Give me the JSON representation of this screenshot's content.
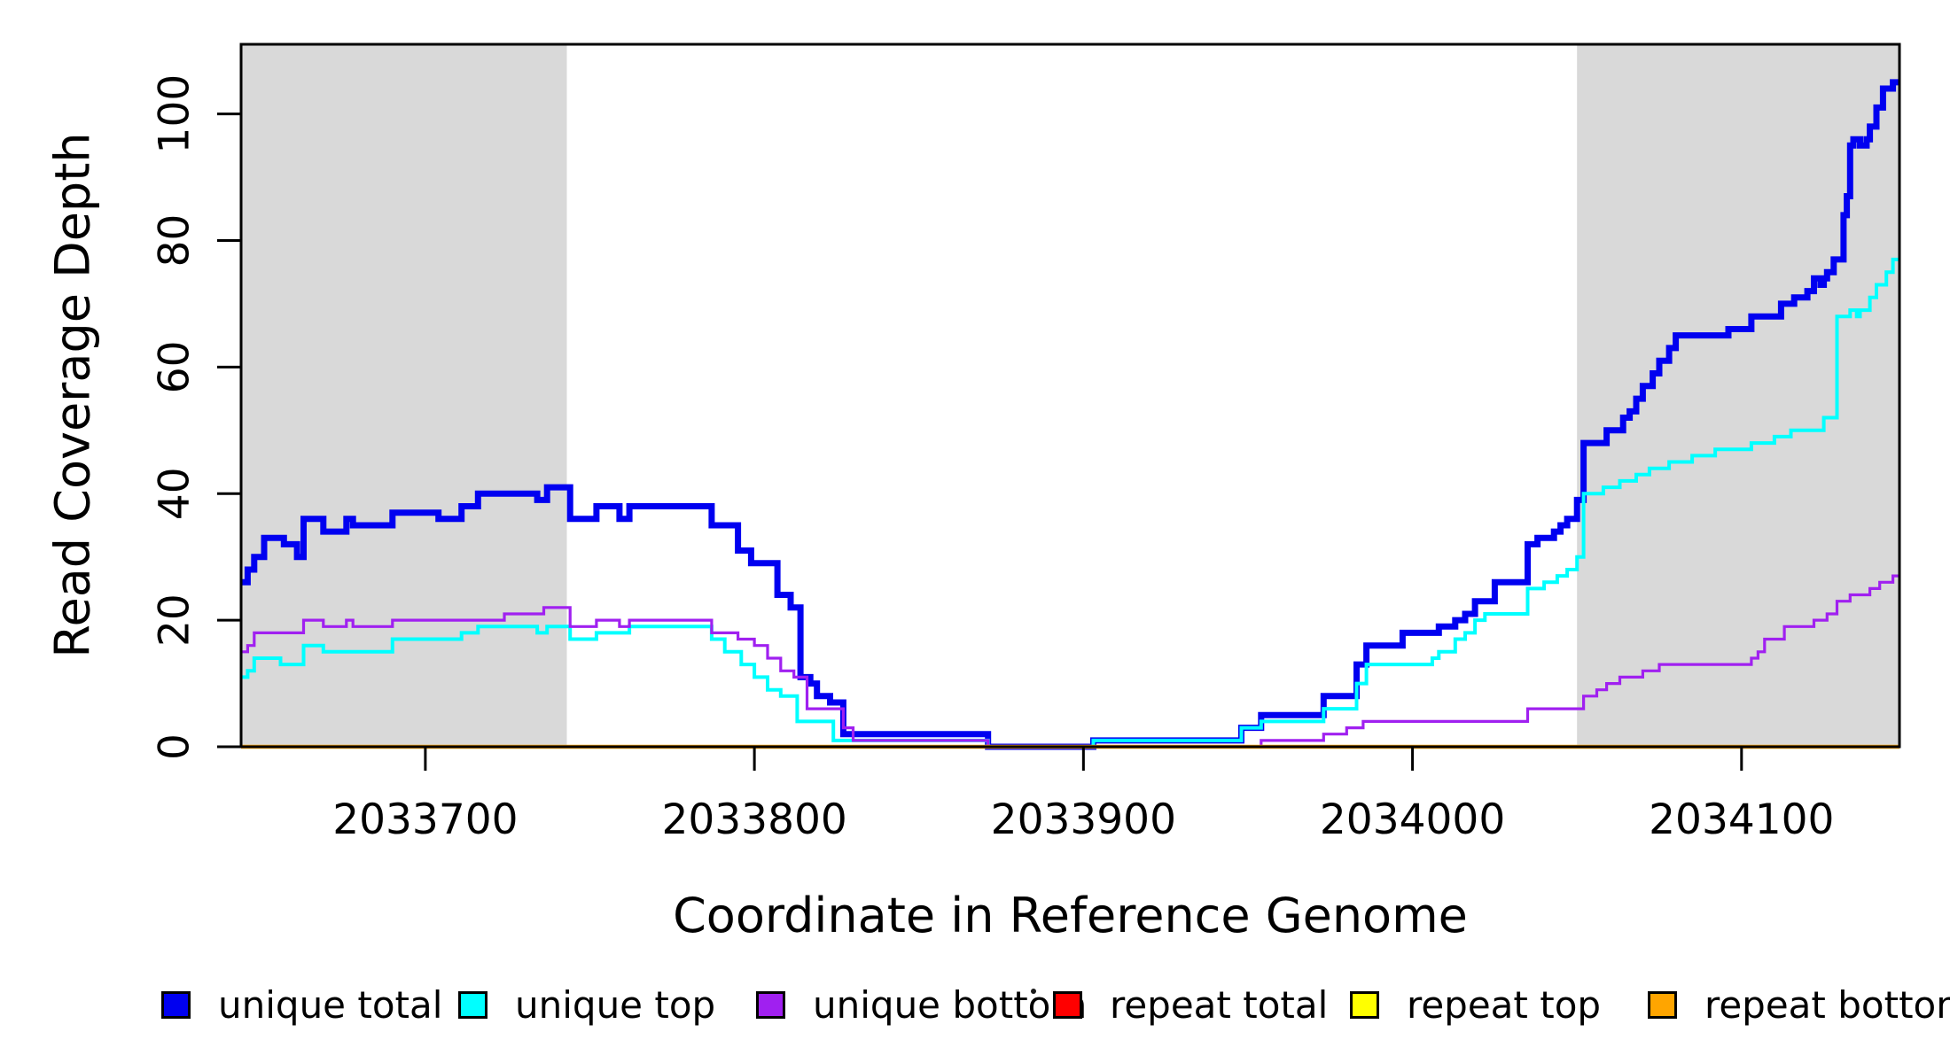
{
  "chart_data": {
    "type": "line",
    "subtype": "step",
    "title": "",
    "xlabel": "Coordinate in Reference Genome",
    "ylabel": "Read Coverage Depth",
    "xlim": [
      2033644,
      2034148
    ],
    "ylim": [
      0,
      111
    ],
    "x_ticks": [
      2033700,
      2033800,
      2033900,
      2034000,
      2034100
    ],
    "y_ticks": [
      0,
      20,
      40,
      60,
      80,
      100
    ],
    "grid": false,
    "legend_position": "bottom",
    "shaded_regions": [
      {
        "x0": 2033644,
        "x1": 2033743,
        "color": "#d9d9d9"
      },
      {
        "x0": 2034050,
        "x1": 2034148,
        "color": "#d9d9d9"
      }
    ],
    "series": [
      {
        "name": "unique total",
        "color": "#0000f0",
        "width": 7,
        "points": [
          [
            2033644,
            26
          ],
          [
            2033646,
            28
          ],
          [
            2033648,
            30
          ],
          [
            2033651,
            33
          ],
          [
            2033657,
            32
          ],
          [
            2033661,
            30
          ],
          [
            2033663,
            36
          ],
          [
            2033669,
            34
          ],
          [
            2033676,
            36
          ],
          [
            2033678,
            35
          ],
          [
            2033690,
            37
          ],
          [
            2033704,
            36
          ],
          [
            2033711,
            38
          ],
          [
            2033716,
            40
          ],
          [
            2033734,
            39
          ],
          [
            2033737,
            41
          ],
          [
            2033744,
            36
          ],
          [
            2033752,
            38
          ],
          [
            2033759,
            36
          ],
          [
            2033762,
            38
          ],
          [
            2033787,
            35
          ],
          [
            2033795,
            31
          ],
          [
            2033799,
            29
          ],
          [
            2033807,
            24
          ],
          [
            2033811,
            22
          ],
          [
            2033814,
            11
          ],
          [
            2033817,
            10
          ],
          [
            2033819,
            8
          ],
          [
            2033823,
            7
          ],
          [
            2033827,
            2
          ],
          [
            2033871,
            0
          ],
          [
            2033903,
            1
          ],
          [
            2033948,
            3
          ],
          [
            2033954,
            5
          ],
          [
            2033973,
            8
          ],
          [
            2033983,
            13
          ],
          [
            2033986,
            16
          ],
          [
            2033997,
            18
          ],
          [
            2034008,
            19
          ],
          [
            2034013,
            20
          ],
          [
            2034016,
            21
          ],
          [
            2034019,
            23
          ],
          [
            2034025,
            26
          ],
          [
            2034035,
            32
          ],
          [
            2034038,
            33
          ],
          [
            2034043,
            34
          ],
          [
            2034045,
            35
          ],
          [
            2034047,
            36
          ],
          [
            2034050,
            39
          ],
          [
            2034052,
            48
          ],
          [
            2034059,
            50
          ],
          [
            2034064,
            52
          ],
          [
            2034066,
            53
          ],
          [
            2034068,
            55
          ],
          [
            2034070,
            57
          ],
          [
            2034073,
            59
          ],
          [
            2034075,
            61
          ],
          [
            2034078,
            63
          ],
          [
            2034080,
            65
          ],
          [
            2034096,
            66
          ],
          [
            2034103,
            68
          ],
          [
            2034112,
            70
          ],
          [
            2034116,
            71
          ],
          [
            2034120,
            72
          ],
          [
            2034122,
            74
          ],
          [
            2034124,
            73
          ],
          [
            2034125,
            74
          ],
          [
            2034126,
            75
          ],
          [
            2034128,
            77
          ],
          [
            2034131,
            84
          ],
          [
            2034132,
            87
          ],
          [
            2034133,
            95
          ],
          [
            2034134,
            96
          ],
          [
            2034136,
            95
          ],
          [
            2034138,
            96
          ],
          [
            2034139,
            98
          ],
          [
            2034141,
            101
          ],
          [
            2034143,
            104
          ],
          [
            2034146,
            105
          ]
        ]
      },
      {
        "name": "unique top",
        "color": "#00ffff",
        "width": 4,
        "points": [
          [
            2033644,
            11
          ],
          [
            2033646,
            12
          ],
          [
            2033648,
            14
          ],
          [
            2033656,
            13
          ],
          [
            2033663,
            16
          ],
          [
            2033669,
            15
          ],
          [
            2033690,
            17
          ],
          [
            2033711,
            18
          ],
          [
            2033716,
            19
          ],
          [
            2033734,
            18
          ],
          [
            2033737,
            19
          ],
          [
            2033744,
            17
          ],
          [
            2033752,
            18
          ],
          [
            2033762,
            19
          ],
          [
            2033787,
            17
          ],
          [
            2033791,
            15
          ],
          [
            2033796,
            13
          ],
          [
            2033800,
            11
          ],
          [
            2033804,
            9
          ],
          [
            2033808,
            8
          ],
          [
            2033813,
            4
          ],
          [
            2033824,
            1
          ],
          [
            2033871,
            0
          ],
          [
            2033903,
            1
          ],
          [
            2033948,
            3
          ],
          [
            2033954,
            4
          ],
          [
            2033973,
            6
          ],
          [
            2033983,
            10
          ],
          [
            2033986,
            13
          ],
          [
            2034006,
            14
          ],
          [
            2034008,
            15
          ],
          [
            2034013,
            17
          ],
          [
            2034016,
            18
          ],
          [
            2034019,
            20
          ],
          [
            2034022,
            21
          ],
          [
            2034035,
            25
          ],
          [
            2034040,
            26
          ],
          [
            2034044,
            27
          ],
          [
            2034047,
            28
          ],
          [
            2034050,
            30
          ],
          [
            2034052,
            40
          ],
          [
            2034058,
            41
          ],
          [
            2034063,
            42
          ],
          [
            2034068,
            43
          ],
          [
            2034072,
            44
          ],
          [
            2034078,
            45
          ],
          [
            2034085,
            46
          ],
          [
            2034092,
            47
          ],
          [
            2034103,
            48
          ],
          [
            2034110,
            49
          ],
          [
            2034115,
            50
          ],
          [
            2034125,
            52
          ],
          [
            2034129,
            68
          ],
          [
            2034133,
            69
          ],
          [
            2034135,
            68
          ],
          [
            2034136,
            69
          ],
          [
            2034139,
            71
          ],
          [
            2034141,
            73
          ],
          [
            2034144,
            75
          ],
          [
            2034146,
            77
          ]
        ]
      },
      {
        "name": "unique bottom",
        "color": "#a020f0",
        "width": 3.2,
        "points": [
          [
            2033644,
            15
          ],
          [
            2033646,
            16
          ],
          [
            2033648,
            18
          ],
          [
            2033663,
            20
          ],
          [
            2033669,
            19
          ],
          [
            2033676,
            20
          ],
          [
            2033678,
            19
          ],
          [
            2033690,
            20
          ],
          [
            2033724,
            21
          ],
          [
            2033736,
            22
          ],
          [
            2033744,
            19
          ],
          [
            2033752,
            20
          ],
          [
            2033759,
            19
          ],
          [
            2033762,
            20
          ],
          [
            2033787,
            18
          ],
          [
            2033795,
            17
          ],
          [
            2033800,
            16
          ],
          [
            2033804,
            14
          ],
          [
            2033808,
            12
          ],
          [
            2033812,
            11
          ],
          [
            2033816,
            6
          ],
          [
            2033827,
            3
          ],
          [
            2033830,
            1
          ],
          [
            2033871,
            0
          ],
          [
            2033954,
            1
          ],
          [
            2033973,
            2
          ],
          [
            2033980,
            3
          ],
          [
            2033985,
            4
          ],
          [
            2034035,
            6
          ],
          [
            2034052,
            8
          ],
          [
            2034056,
            9
          ],
          [
            2034059,
            10
          ],
          [
            2034063,
            11
          ],
          [
            2034070,
            12
          ],
          [
            2034075,
            13
          ],
          [
            2034103,
            14
          ],
          [
            2034105,
            15
          ],
          [
            2034107,
            17
          ],
          [
            2034113,
            19
          ],
          [
            2034122,
            20
          ],
          [
            2034126,
            21
          ],
          [
            2034129,
            23
          ],
          [
            2034133,
            24
          ],
          [
            2034139,
            25
          ],
          [
            2034142,
            26
          ],
          [
            2034146,
            27
          ]
        ]
      },
      {
        "name": "repeat total",
        "color": "#ff0000",
        "width": 3,
        "points": [
          [
            2033644,
            0
          ]
        ]
      },
      {
        "name": "repeat top",
        "color": "#ffff00",
        "width": 3,
        "points": [
          [
            2033644,
            0
          ]
        ]
      },
      {
        "name": "repeat bottom",
        "color": "#ffa500",
        "width": 4.5,
        "points": [
          [
            2033644,
            0
          ]
        ]
      }
    ]
  }
}
